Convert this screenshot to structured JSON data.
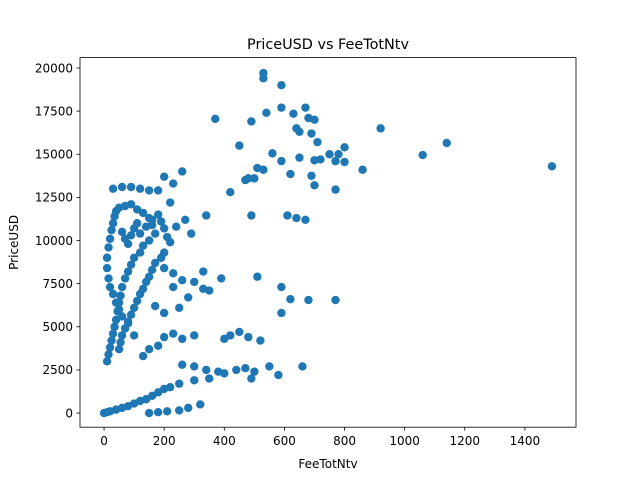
{
  "chart_data": {
    "type": "scatter",
    "title": "PriceUSD vs FeeTotNtv",
    "xlabel": "FeeTotNtv",
    "ylabel": "PriceUSD",
    "xlim": [
      -80,
      1570
    ],
    "ylim": [
      -820,
      20600
    ],
    "xticks": [
      0,
      200,
      400,
      600,
      800,
      1000,
      1200,
      1400
    ],
    "yticks": [
      0,
      2500,
      5000,
      7500,
      10000,
      12500,
      15000,
      17500,
      20000
    ],
    "grid": false,
    "legend": "none",
    "marker_color": "#1f77b4",
    "points": [
      [
        530,
        19700
      ],
      [
        530,
        19400
      ],
      [
        590,
        19000
      ],
      [
        370,
        17050
      ],
      [
        490,
        16900
      ],
      [
        540,
        17400
      ],
      [
        590,
        17700
      ],
      [
        630,
        17350
      ],
      [
        670,
        17700
      ],
      [
        680,
        17100
      ],
      [
        700,
        17000
      ],
      [
        690,
        16200
      ],
      [
        640,
        16500
      ],
      [
        650,
        16300
      ],
      [
        920,
        16500
      ],
      [
        1140,
        15650
      ],
      [
        1060,
        14950
      ],
      [
        1490,
        14300
      ],
      [
        450,
        15500
      ],
      [
        560,
        15050
      ],
      [
        510,
        14200
      ],
      [
        530,
        14100
      ],
      [
        480,
        13600
      ],
      [
        500,
        13600
      ],
      [
        470,
        13500
      ],
      [
        590,
        14600
      ],
      [
        650,
        14800
      ],
      [
        700,
        14650
      ],
      [
        710,
        15700
      ],
      [
        750,
        15000
      ],
      [
        770,
        14600
      ],
      [
        780,
        15000
      ],
      [
        800,
        15400
      ],
      [
        800,
        14550
      ],
      [
        860,
        14100
      ],
      [
        620,
        13850
      ],
      [
        700,
        13200
      ],
      [
        770,
        12950
      ],
      [
        720,
        14700
      ],
      [
        690,
        13750
      ],
      [
        420,
        12800
      ],
      [
        490,
        11450
      ],
      [
        610,
        11450
      ],
      [
        640,
        11300
      ],
      [
        670,
        11200
      ],
      [
        340,
        11450
      ],
      [
        260,
        14000
      ],
      [
        230,
        13300
      ],
      [
        200,
        13700
      ],
      [
        680,
        6550
      ],
      [
        770,
        6550
      ],
      [
        590,
        7300
      ],
      [
        620,
        6600
      ],
      [
        510,
        7900
      ],
      [
        590,
        5800
      ],
      [
        660,
        2700
      ],
      [
        520,
        4200
      ],
      [
        580,
        2200
      ],
      [
        550,
        2700
      ],
      [
        30,
        13000
      ],
      [
        60,
        13100
      ],
      [
        90,
        13100
      ],
      [
        120,
        13000
      ],
      [
        150,
        12900
      ],
      [
        180,
        12900
      ],
      [
        220,
        12200
      ],
      [
        270,
        11200
      ],
      [
        240,
        10800
      ],
      [
        290,
        10400
      ],
      [
        330,
        7200
      ],
      [
        330,
        8200
      ],
      [
        390,
        7800
      ],
      [
        350,
        7100
      ],
      [
        300,
        7600
      ],
      [
        260,
        7700
      ],
      [
        230,
        7300
      ],
      [
        200,
        8400
      ],
      [
        230,
        8100
      ],
      [
        250,
        6100
      ],
      [
        280,
        6700
      ],
      [
        200,
        5800
      ],
      [
        170,
        6200
      ],
      [
        420,
        4500
      ],
      [
        450,
        4700
      ],
      [
        480,
        4400
      ],
      [
        400,
        4300
      ],
      [
        300,
        4500
      ],
      [
        260,
        4300
      ],
      [
        230,
        4600
      ],
      [
        200,
        4400
      ],
      [
        180,
        3900
      ],
      [
        150,
        3700
      ],
      [
        130,
        3300
      ],
      [
        260,
        2800
      ],
      [
        300,
        2700
      ],
      [
        340,
        2500
      ],
      [
        380,
        2400
      ],
      [
        400,
        2300
      ],
      [
        440,
        2500
      ],
      [
        470,
        2600
      ],
      [
        500,
        2400
      ],
      [
        490,
        2000
      ],
      [
        350,
        2000
      ],
      [
        300,
        1900
      ],
      [
        250,
        1700
      ],
      [
        220,
        1500
      ],
      [
        200,
        1400
      ],
      [
        180,
        1200
      ],
      [
        160,
        1000
      ],
      [
        140,
        800
      ],
      [
        120,
        700
      ],
      [
        100,
        550
      ],
      [
        80,
        400
      ],
      [
        60,
        300
      ],
      [
        40,
        200
      ],
      [
        20,
        100
      ],
      [
        10,
        50
      ],
      [
        0,
        0
      ],
      [
        320,
        500
      ],
      [
        280,
        300
      ],
      [
        250,
        150
      ],
      [
        210,
        100
      ],
      [
        180,
        50
      ],
      [
        150,
        0
      ],
      [
        100,
        4500
      ],
      [
        80,
        5200
      ],
      [
        60,
        5600
      ],
      [
        50,
        6000
      ],
      [
        40,
        6400
      ],
      [
        30,
        6900
      ],
      [
        20,
        7300
      ],
      [
        15,
        7800
      ],
      [
        10,
        8400
      ],
      [
        10,
        9000
      ],
      [
        15,
        9600
      ],
      [
        20,
        10100
      ],
      [
        25,
        10600
      ],
      [
        30,
        11000
      ],
      [
        35,
        11400
      ],
      [
        40,
        11700
      ],
      [
        50,
        11900
      ],
      [
        70,
        12000
      ],
      [
        90,
        12100
      ],
      [
        110,
        11800
      ],
      [
        130,
        11600
      ],
      [
        150,
        11300
      ],
      [
        160,
        10900
      ],
      [
        170,
        10400
      ],
      [
        150,
        10000
      ],
      [
        130,
        9700
      ],
      [
        120,
        9300
      ],
      [
        100,
        9000
      ],
      [
        90,
        8600
      ],
      [
        80,
        8200
      ],
      [
        70,
        7800
      ],
      [
        60,
        7300
      ],
      [
        55,
        6800
      ],
      [
        50,
        6400
      ],
      [
        45,
        5900
      ],
      [
        40,
        5400
      ],
      [
        35,
        5000
      ],
      [
        30,
        4600
      ],
      [
        25,
        4200
      ],
      [
        20,
        3800
      ],
      [
        15,
        3400
      ],
      [
        10,
        3000
      ],
      [
        60,
        10500
      ],
      [
        70,
        10100
      ],
      [
        80,
        9800
      ],
      [
        90,
        10300
      ],
      [
        100,
        10700
      ],
      [
        110,
        11000
      ],
      [
        120,
        10400
      ],
      [
        140,
        10800
      ],
      [
        160,
        11200
      ],
      [
        180,
        11500
      ],
      [
        190,
        11100
      ],
      [
        200,
        10700
      ],
      [
        210,
        10200
      ],
      [
        220,
        9900
      ],
      [
        200,
        9300
      ],
      [
        190,
        9000
      ],
      [
        170,
        8700
      ],
      [
        160,
        8300
      ],
      [
        150,
        7900
      ],
      [
        140,
        7600
      ],
      [
        130,
        7200
      ],
      [
        120,
        6900
      ],
      [
        110,
        6500
      ],
      [
        100,
        6100
      ],
      [
        90,
        5700
      ],
      [
        80,
        5300
      ],
      [
        70,
        4900
      ],
      [
        60,
        4500
      ],
      [
        55,
        4100
      ],
      [
        50,
        3700
      ]
    ]
  }
}
